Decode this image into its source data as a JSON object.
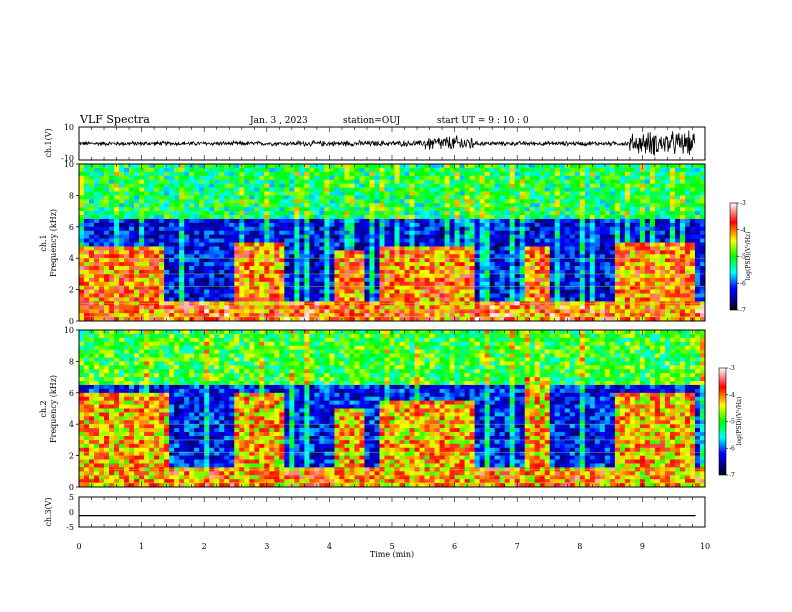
{
  "header": {
    "title": "VLF Spectra",
    "date": "Jan. 3 , 2023",
    "station": "station=OUJ",
    "start": "start UT = 9 : 10 : 0"
  },
  "chart_data": [
    {
      "type": "line",
      "panel": "ch1-waveform",
      "ylabel": "ch.1(V)",
      "yticks": [
        "10",
        "-10"
      ],
      "ylim": [
        -10,
        10
      ],
      "xlim": [
        0,
        10
      ],
      "description_of_signal": "noisy waveform near 0 V with bursts",
      "segments": [
        {
          "x": [
            0,
            3.5
          ],
          "amplitude": 1.5
        },
        {
          "x": [
            3.5,
            5.5
          ],
          "amplitude": 2.0
        },
        {
          "x": [
            5.5,
            6.3
          ],
          "amplitude": 5.5
        },
        {
          "x": [
            6.3,
            8.8
          ],
          "amplitude": 1.5
        },
        {
          "x": [
            8.8,
            9.0
          ],
          "amplitude": 7.0
        },
        {
          "x": [
            9.0,
            9.85
          ],
          "amplitude": 8.5
        }
      ]
    },
    {
      "type": "heatmap",
      "panel": "ch1-spectrogram",
      "ylabel": "ch.1",
      "ylabel2": "Frequency (kHz)",
      "yticks": [
        "0",
        "2",
        "4",
        "6",
        "8",
        "10"
      ],
      "ylim": [
        0,
        10
      ],
      "xlim": [
        0,
        10
      ],
      "colorbar": {
        "label": "log(PSD)(V²/Hz)",
        "ticks": [
          "-3",
          "-4",
          "-5",
          "-6",
          "-7"
        ],
        "range": [
          -7,
          -3
        ]
      },
      "bands": [
        {
          "x": [
            0,
            1.4
          ],
          "high": 4.7
        },
        {
          "x": [
            2.45,
            3.3
          ],
          "high": 4.9
        },
        {
          "x": [
            4.05,
            4.55
          ],
          "high": 4.6
        },
        {
          "x": [
            4.8,
            6.3
          ],
          "high": 4.7
        },
        {
          "x": [
            7.15,
            7.55
          ],
          "high": 4.7
        },
        {
          "x": [
            8.55,
            9.85
          ],
          "high": 5.0
        }
      ],
      "background_level": -6.3,
      "band_level": -4.0,
      "upper_level": -5.2
    },
    {
      "type": "heatmap",
      "panel": "ch2-spectrogram",
      "ylabel": "ch.2",
      "ylabel2": "Frequency (kHz)",
      "yticks": [
        "0",
        "2",
        "4",
        "6",
        "8",
        "10"
      ],
      "ylim": [
        0,
        10
      ],
      "xlim": [
        0,
        10
      ],
      "colorbar": {
        "label": "log(PSD)(V²/Hz)",
        "ticks": [
          "-3",
          "-4",
          "-5",
          "-6",
          "-7"
        ],
        "range": [
          -7,
          -3
        ]
      },
      "bands": [
        {
          "x": [
            0,
            1.45
          ],
          "high": 6.0
        },
        {
          "x": [
            2.45,
            3.3
          ],
          "high": 6.0
        },
        {
          "x": [
            4.05,
            4.55
          ],
          "high": 5.0
        },
        {
          "x": [
            4.8,
            6.3
          ],
          "high": 5.5
        },
        {
          "x": [
            7.15,
            7.55
          ],
          "high": 7.0
        },
        {
          "x": [
            8.55,
            9.85
          ],
          "high": 6.0
        }
      ],
      "background_level": -6.2,
      "band_level": -4.2,
      "upper_level": -5.0
    },
    {
      "type": "line",
      "panel": "ch3-waveform",
      "ylabel": "ch.3(V)",
      "yticks": [
        "5",
        "0",
        "-5"
      ],
      "ylim": [
        -5,
        5
      ],
      "xlim": [
        0,
        10
      ],
      "x": [
        0,
        9.85
      ],
      "y": [
        -1.2,
        -1.2
      ]
    }
  ],
  "xaxis": {
    "label": "Time (min)",
    "ticks": [
      "0",
      "1",
      "2",
      "3",
      "4",
      "5",
      "6",
      "7",
      "8",
      "9",
      "10"
    ]
  },
  "colors": {
    "axis": "#000000",
    "trace": "#000000"
  }
}
